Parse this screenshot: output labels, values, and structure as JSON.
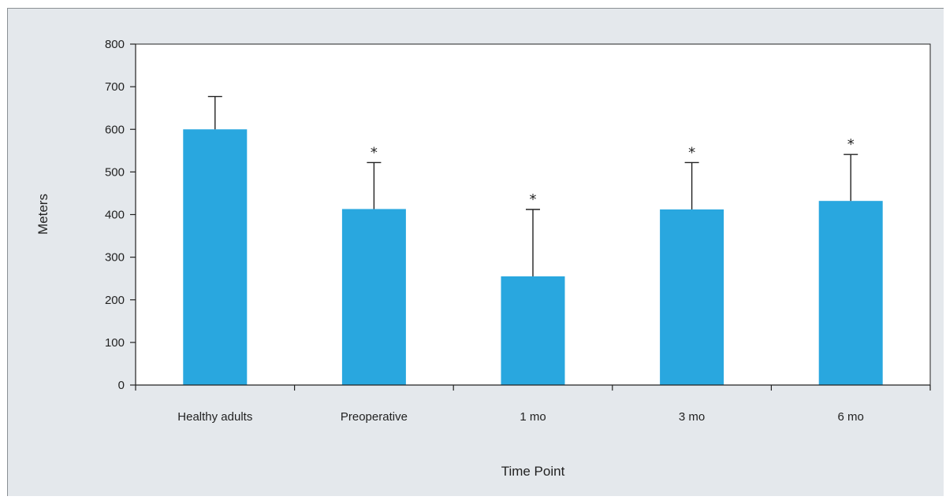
{
  "chart_data": {
    "type": "bar",
    "title": "",
    "xlabel": "Time Point",
    "ylabel": "Meters",
    "categories": [
      "Healthy adults",
      "Preoperative",
      "1 mo",
      "3 mo",
      "6 mo"
    ],
    "values": [
      600,
      413,
      255,
      412,
      432
    ],
    "error_upper": [
      677,
      522,
      412,
      522,
      541
    ],
    "significance_markers": [
      "",
      "*",
      "*",
      "*",
      "*"
    ],
    "ylim": [
      0,
      800
    ],
    "yticks": [
      "0",
      "100",
      "200",
      "300",
      "400",
      "500",
      "600",
      "700",
      "800"
    ],
    "grid": false,
    "legend": "none",
    "bar_color": "#29a7df"
  }
}
